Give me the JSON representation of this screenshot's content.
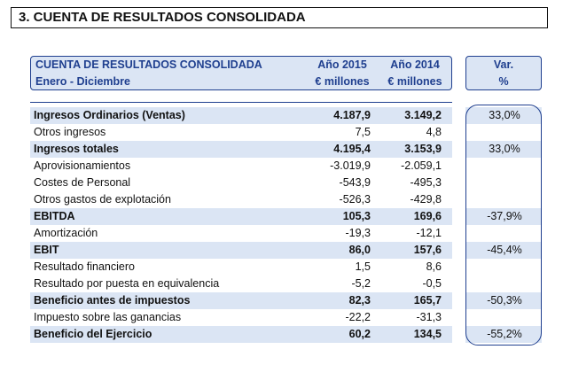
{
  "title": "3. CUENTA DE RESULTADOS CONSOLIDADA",
  "header": {
    "line1": "CUENTA DE RESULTADOS CONSOLIDADA",
    "line2": "Enero - Diciembre",
    "col2015_line1": "Año 2015",
    "col2015_line2": "€ millones",
    "col2014_line1": "Año 2014",
    "col2014_line2": "€ millones",
    "var_line1": "Var.",
    "var_line2": "%"
  },
  "rows": [
    {
      "label": "Ingresos Ordinarios (Ventas)",
      "v2015": "4.187,9",
      "v2014": "3.149,2",
      "var": "33,0%"
    },
    {
      "label": "Otros ingresos",
      "v2015": "7,5",
      "v2014": "4,8",
      "var": ""
    },
    {
      "label": "Ingresos totales",
      "v2015": "4.195,4",
      "v2014": "3.153,9",
      "var": "33,0%"
    },
    {
      "label": "Aprovisionamientos",
      "v2015": "-3.019,9",
      "v2014": "-2.059,1",
      "var": ""
    },
    {
      "label": "Costes de Personal",
      "v2015": "-543,9",
      "v2014": "-495,3",
      "var": ""
    },
    {
      "label": "Otros gastos de explotación",
      "v2015": "-526,3",
      "v2014": "-429,8",
      "var": ""
    },
    {
      "label": "EBITDA",
      "v2015": "105,3",
      "v2014": "169,6",
      "var": "-37,9%"
    },
    {
      "label": "Amortización",
      "v2015": "-19,3",
      "v2014": "-12,1",
      "var": ""
    },
    {
      "label": "EBIT",
      "v2015": "86,0",
      "v2014": "157,6",
      "var": "-45,4%"
    },
    {
      "label": "Resultado financiero",
      "v2015": "1,5",
      "v2014": "8,6",
      "var": ""
    },
    {
      "label": "Resultado por puesta en equivalencia",
      "v2015": "-5,2",
      "v2014": "-0,5",
      "var": ""
    },
    {
      "label": "Beneficio antes de impuestos",
      "v2015": "82,3",
      "v2014": "165,7",
      "var": "-50,3%"
    },
    {
      "label": "Impuesto sobre las ganancias",
      "v2015": "-22,2",
      "v2014": "-31,3",
      "var": ""
    },
    {
      "label": "Beneficio del Ejercicio",
      "v2015": "60,2",
      "v2014": "134,5",
      "var": "-55,2%"
    }
  ]
}
